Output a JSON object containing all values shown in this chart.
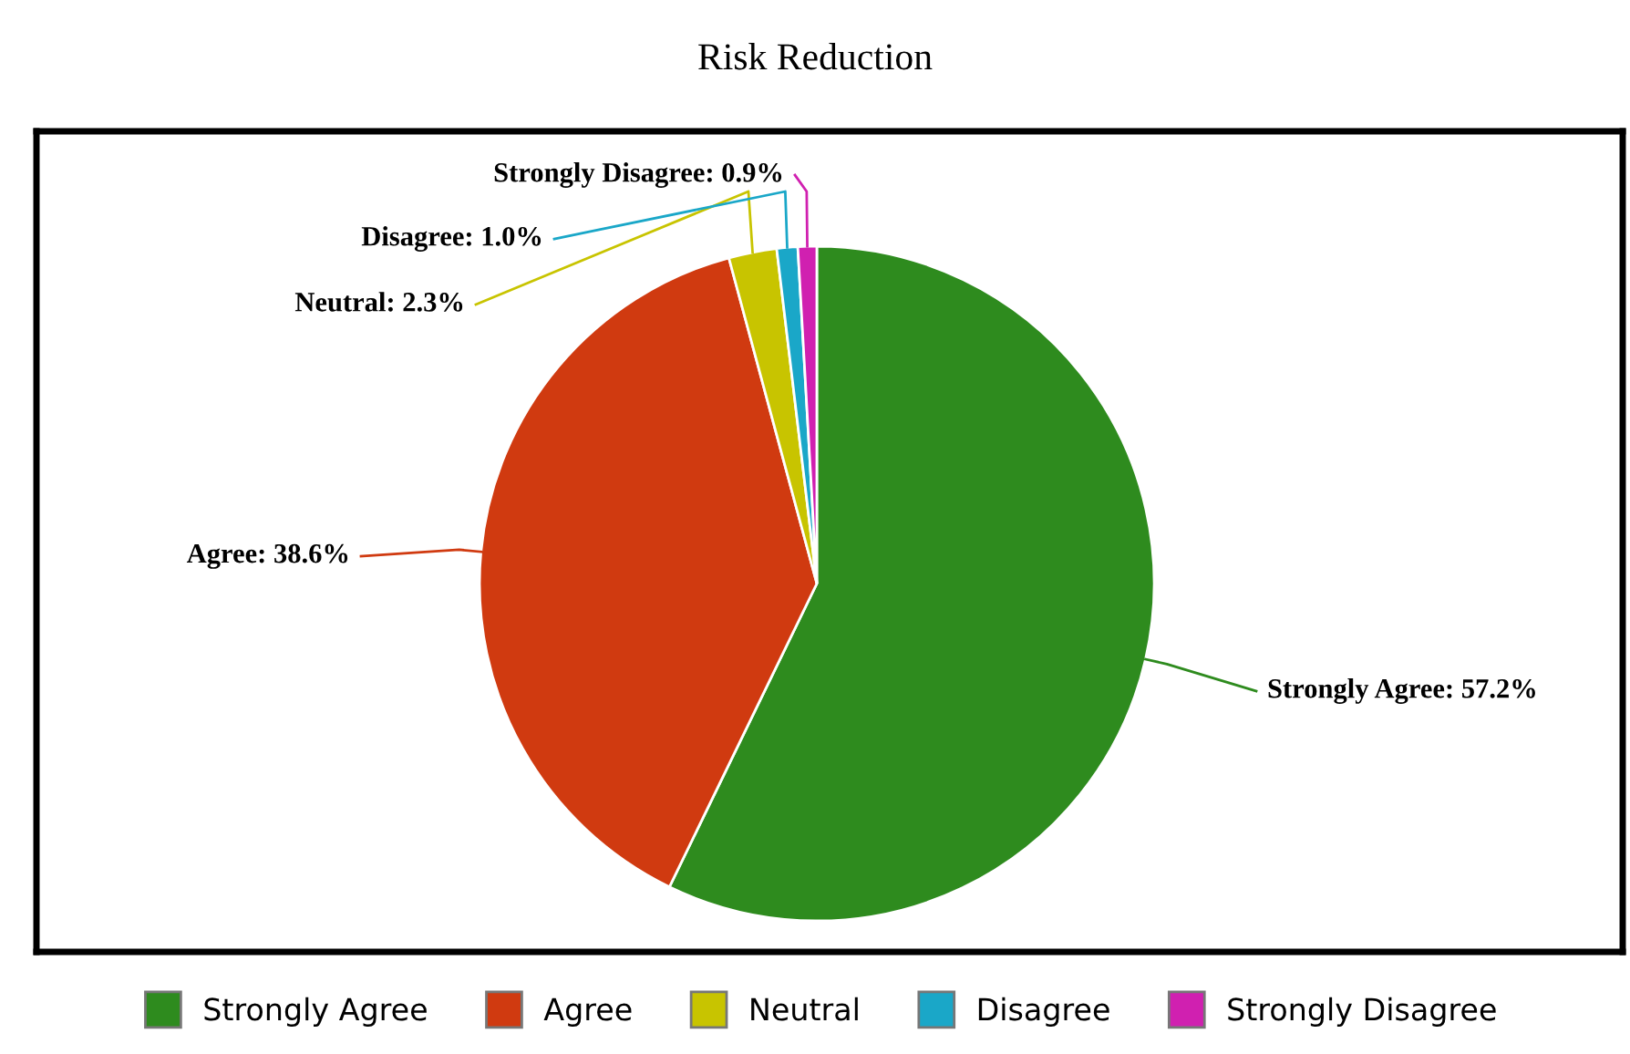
{
  "chart_data": {
    "type": "pie",
    "title": "Risk Reduction",
    "categories": [
      "Strongly Agree",
      "Agree",
      "Neutral",
      "Disagree",
      "Strongly Disagree"
    ],
    "values": [
      57.2,
      38.6,
      2.3,
      1.0,
      0.9
    ],
    "value_labels": [
      "Strongly Agree: 57.2%",
      "Agree: 38.6%",
      "Neutral: 2.3%",
      "Disagree: 1.0%",
      "Strongly Disagree: 0.9%"
    ],
    "colors": [
      "#2e8b1e",
      "#d03a10",
      "#c8c400",
      "#1aa7c8",
      "#d020b0"
    ],
    "legend": "bottom"
  }
}
